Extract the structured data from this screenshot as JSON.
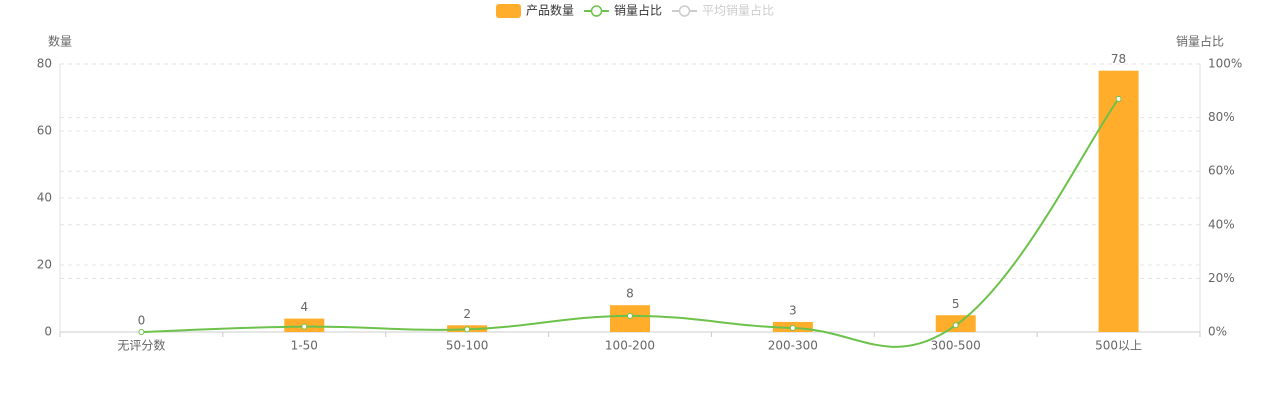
{
  "chart_data": {
    "type": "bar-line",
    "categories": [
      "无评分数",
      "1-50",
      "50-100",
      "100-200",
      "200-300",
      "300-500",
      "500以上"
    ],
    "series": [
      {
        "name": "产品数量",
        "type": "bar",
        "color": "#ffad2b",
        "values": [
          0,
          4,
          2,
          8,
          3,
          5,
          78
        ]
      },
      {
        "name": "销量占比",
        "type": "line",
        "axis": "y2",
        "color": "#6cc24a",
        "values": [
          0,
          2,
          1,
          6,
          1.5,
          2.5,
          87
        ]
      },
      {
        "name": "平均销量占比",
        "type": "line",
        "axis": "y2",
        "color": "#cccccc",
        "hidden": true,
        "values": [
          null,
          null,
          null,
          null,
          null,
          null,
          null
        ]
      }
    ],
    "ylabel": "数量",
    "y2label": "销量占比",
    "ylim": [
      0,
      80
    ],
    "yticks": [
      0,
      20,
      40,
      60,
      80
    ],
    "y2lim": [
      0,
      100
    ],
    "y2ticks": [
      {
        "value": 0,
        "label": "0%"
      },
      {
        "value": 20,
        "label": "20%"
      },
      {
        "value": 40,
        "label": "40%"
      },
      {
        "value": 60,
        "label": "60%"
      },
      {
        "value": 80,
        "label": "80%"
      },
      {
        "value": 100,
        "label": "100%"
      }
    ],
    "grid": true,
    "legend": "top"
  }
}
